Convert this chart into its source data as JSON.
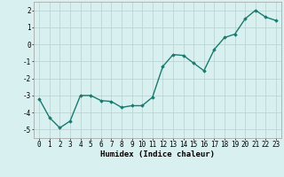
{
  "x": [
    0,
    1,
    2,
    3,
    4,
    5,
    6,
    7,
    8,
    9,
    10,
    11,
    12,
    13,
    14,
    15,
    16,
    17,
    18,
    19,
    20,
    21,
    22,
    23
  ],
  "y": [
    -3.2,
    -4.3,
    -4.9,
    -4.5,
    -3.0,
    -3.0,
    -3.3,
    -3.35,
    -3.7,
    -3.6,
    -3.6,
    -3.1,
    -1.3,
    -0.6,
    -0.65,
    -1.1,
    -1.55,
    -0.3,
    0.4,
    0.6,
    1.5,
    2.0,
    1.6,
    1.4
  ],
  "line_color": "#1a7a6e",
  "marker": "D",
  "marker_size": 1.8,
  "bg_color": "#d9f0f0",
  "grid_color": "#b8d0d0",
  "xlabel": "Humidex (Indice chaleur)",
  "xlim": [
    -0.5,
    23.5
  ],
  "ylim": [
    -5.5,
    2.5
  ],
  "yticks": [
    -5,
    -4,
    -3,
    -2,
    -1,
    0,
    1,
    2
  ],
  "xticks": [
    0,
    1,
    2,
    3,
    4,
    5,
    6,
    7,
    8,
    9,
    10,
    11,
    12,
    13,
    14,
    15,
    16,
    17,
    18,
    19,
    20,
    21,
    22,
    23
  ],
  "xlabel_fontsize": 6.5,
  "tick_fontsize": 5.5,
  "line_width": 1.0
}
